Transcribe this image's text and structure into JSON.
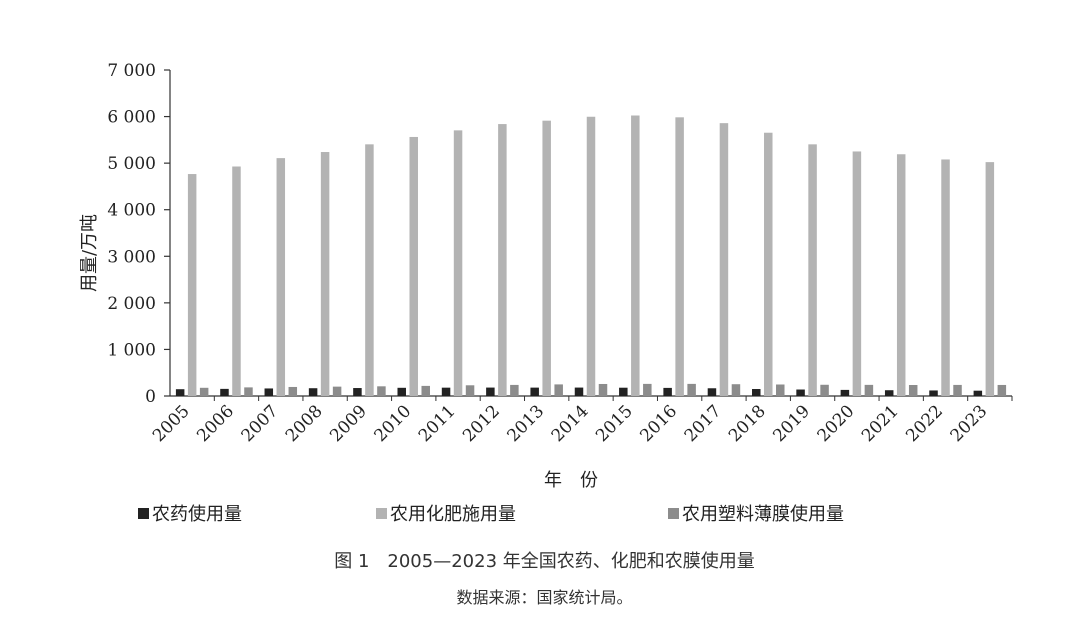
{
  "chart_data": {
    "type": "bar",
    "title": "图 1　2005—2023 年全国农药、化肥和农膜使用量",
    "source_note": "数据来源：国家统计局。",
    "xlabel": "年　份",
    "ylabel": "用量/万吨",
    "ylim": [
      0,
      7000
    ],
    "yticks": [
      {
        "value": 0,
        "label": "0"
      },
      {
        "value": 1000,
        "label": "1 000"
      },
      {
        "value": 2000,
        "label": "2 000"
      },
      {
        "value": 3000,
        "label": "3 000"
      },
      {
        "value": 4000,
        "label": "4 000"
      },
      {
        "value": 5000,
        "label": "5 000"
      },
      {
        "value": 6000,
        "label": "6 000"
      },
      {
        "value": 7000,
        "label": "7 000"
      }
    ],
    "categories": [
      "2005",
      "2006",
      "2007",
      "2008",
      "2009",
      "2010",
      "2011",
      "2012",
      "2013",
      "2014",
      "2015",
      "2016",
      "2017",
      "2018",
      "2019",
      "2020",
      "2021",
      "2022",
      "2023"
    ],
    "series": [
      {
        "name": "农药使用量",
        "color": "#222222",
        "values": [
          146,
          153,
          162,
          167,
          171,
          176,
          179,
          181,
          180,
          181,
          178,
          174,
          166,
          150,
          139,
          131,
          124,
          119,
          114
        ]
      },
      {
        "name": "农用化肥施用量",
        "color": "#b3b3b3",
        "values": [
          4766,
          4928,
          5108,
          5239,
          5404,
          5562,
          5704,
          5839,
          5912,
          5996,
          6023,
          5984,
          5859,
          5653,
          5404,
          5251,
          5191,
          5079,
          5022
        ]
      },
      {
        "name": "农用塑料薄膜使用量",
        "color": "#8c8c8c",
        "values": [
          176,
          185,
          194,
          201,
          208,
          217,
          230,
          238,
          249,
          258,
          260,
          260,
          253,
          247,
          241,
          239,
          236,
          238,
          237
        ]
      }
    ],
    "grid": false,
    "legend_position": "bottom"
  }
}
